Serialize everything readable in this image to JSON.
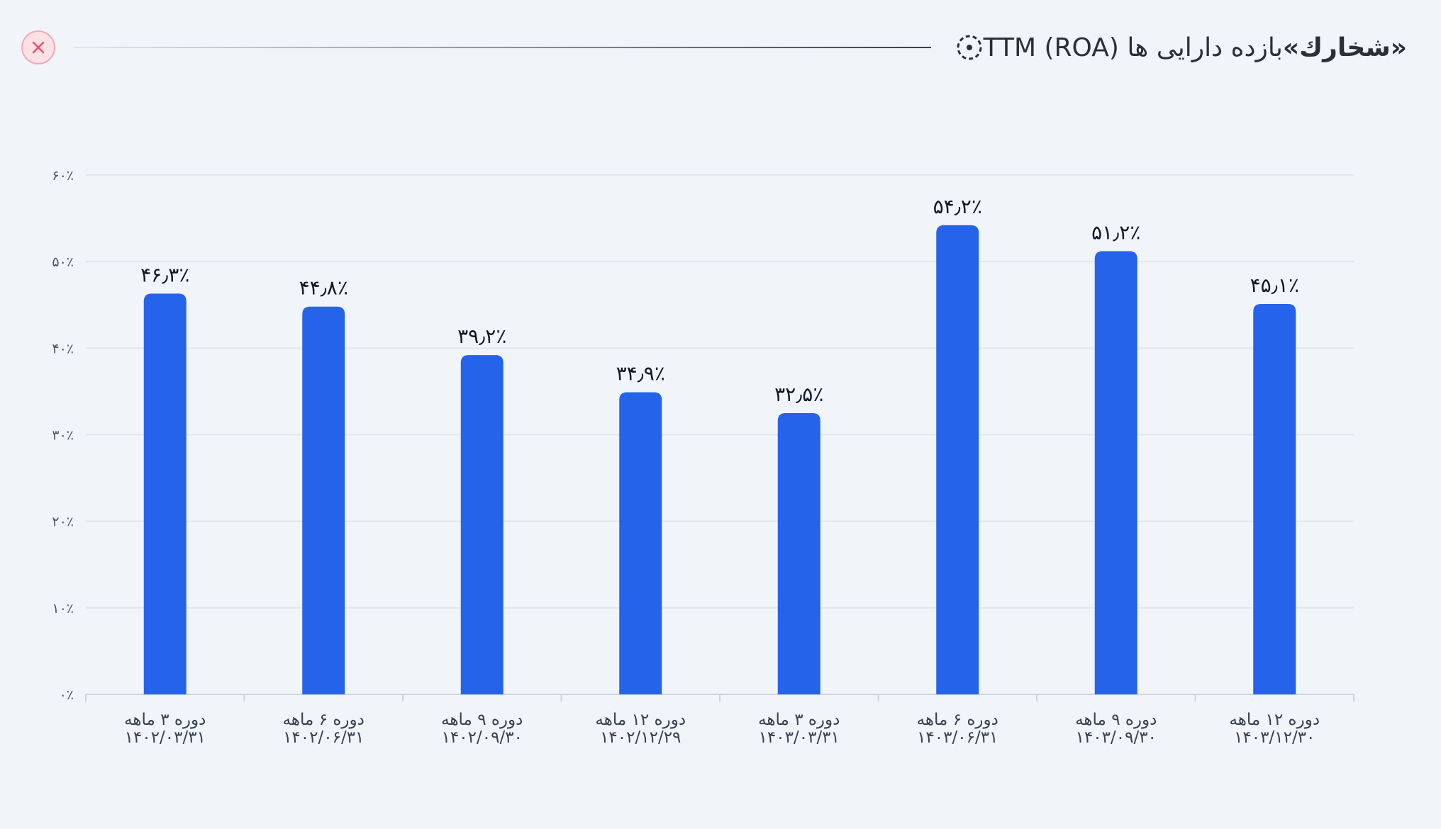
{
  "header": {
    "title": "بازده دارایی ها TTM (ROA)",
    "company": "«شخارك»"
  },
  "icons": {
    "title_icon": "dashed-circle-icon",
    "close_icon": "close-icon"
  },
  "colors": {
    "bar": "#2563eb",
    "grid": "#e3e6ec",
    "axis": "#cfd4dc",
    "close_bg": "#fde1e5",
    "close_fg": "#f0516d"
  },
  "chart_data": {
    "type": "bar",
    "title": "بازده دارایی ها TTM (ROA) «شخارك»",
    "xlabel": "",
    "ylabel": "",
    "ylim": [
      0,
      60
    ],
    "grid": true,
    "yticks": [
      {
        "value": 0,
        "label": "۰٪"
      },
      {
        "value": 10,
        "label": "۱۰٪"
      },
      {
        "value": 20,
        "label": "۲۰٪"
      },
      {
        "value": 30,
        "label": "۳۰٪"
      },
      {
        "value": 40,
        "label": "۴۰٪"
      },
      {
        "value": 50,
        "label": "۵۰٪"
      },
      {
        "value": 60,
        "label": "۶۰٪"
      }
    ],
    "categories": [
      {
        "period": "دوره ۳ ماهه",
        "date": "۱۴۰۲/۰۳/۳۱"
      },
      {
        "period": "دوره ۶ ماهه",
        "date": "۱۴۰۲/۰۶/۳۱"
      },
      {
        "period": "دوره ۹ ماهه",
        "date": "۱۴۰۲/۰۹/۳۰"
      },
      {
        "period": "دوره ۱۲ ماهه",
        "date": "۱۴۰۲/۱۲/۲۹"
      },
      {
        "period": "دوره ۳ ماهه",
        "date": "۱۴۰۳/۰۳/۳۱"
      },
      {
        "period": "دوره ۶ ماهه",
        "date": "۱۴۰۳/۰۶/۳۱"
      },
      {
        "period": "دوره ۹ ماهه",
        "date": "۱۴۰۳/۰۹/۳۰"
      },
      {
        "period": "دوره ۱۲ ماهه",
        "date": "۱۴۰۳/۱۲/۳۰"
      }
    ],
    "values": [
      46.3,
      44.8,
      39.2,
      34.9,
      32.5,
      54.2,
      51.2,
      45.1
    ],
    "value_labels": [
      "۴۶٫۳٪",
      "۴۴٫۸٪",
      "۳۹٫۲٪",
      "۳۴٫۹٪",
      "۳۲٫۵٪",
      "۵۴٫۲٪",
      "۵۱٫۲٪",
      "۴۵٫۱٪"
    ]
  }
}
